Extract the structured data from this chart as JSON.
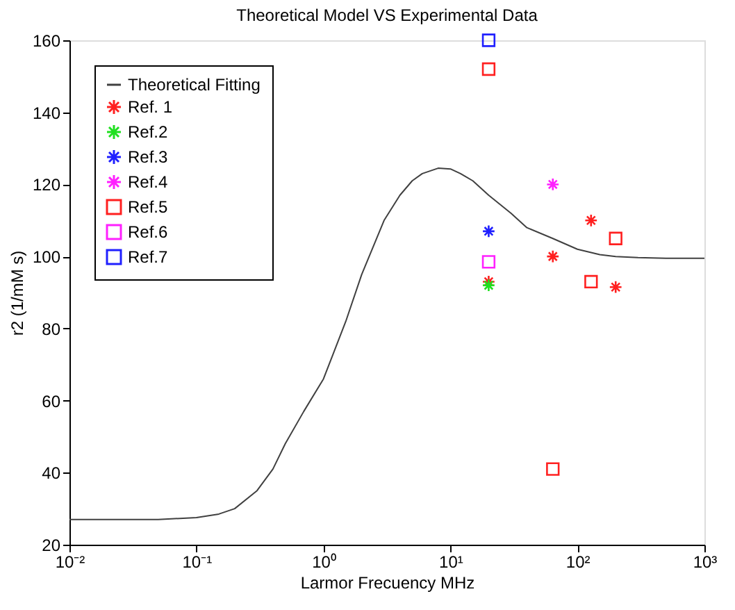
{
  "chart_data": {
    "type": "scatter",
    "title": "Theoretical Model VS Experimental Data",
    "xlabel": "Larmor Frecuency MHz",
    "ylabel": "r2 (1/mM s)",
    "log": "x",
    "grid": false,
    "legend": "top left",
    "xlim": [
      0.01,
      1000
    ],
    "ylim": [
      20,
      160
    ],
    "xticks": [
      {
        "value": 0.01,
        "label": "10⁻²"
      },
      {
        "value": 0.1,
        "label": "10⁻¹"
      },
      {
        "value": 1,
        "label": "10⁰"
      },
      {
        "value": 10,
        "label": "10¹"
      },
      {
        "value": 100,
        "label": "10²"
      },
      {
        "value": 1000,
        "label": "10³"
      }
    ],
    "yticks": [
      20,
      40,
      60,
      80,
      100,
      120,
      140,
      160
    ],
    "series": [
      {
        "name": "Theoretical Fitting",
        "type": "line",
        "color": "#404040",
        "marker": "none",
        "line_style": "solid",
        "x": [
          0.01,
          0.05,
          0.1,
          0.15,
          0.2,
          0.3,
          0.4,
          0.5,
          0.7,
          1,
          1.5,
          2,
          3,
          4,
          5,
          6,
          8,
          10,
          12,
          15,
          20,
          30,
          40,
          64,
          100,
          150,
          200,
          300,
          500,
          1000
        ],
        "values": [
          27,
          27,
          27.5,
          28.5,
          30,
          35,
          41,
          48,
          57,
          66,
          82,
          95,
          110,
          117,
          121,
          123,
          124.5,
          124.3,
          123,
          121,
          117,
          112,
          108,
          105,
          102,
          100.5,
          100,
          99.7,
          99.5,
          99.5
        ]
      },
      {
        "name": "Ref. 1",
        "color": "#ff2020",
        "marker": "cross",
        "x": [
          20,
          64,
          128,
          200
        ],
        "values": [
          93,
          100,
          110,
          91.5
        ]
      },
      {
        "name": "Ref.2",
        "color": "#20e020",
        "marker": "cross",
        "x": [
          20
        ],
        "values": [
          92
        ]
      },
      {
        "name": "Ref.3",
        "color": "#2020ff",
        "marker": "cross",
        "x": [
          20
        ],
        "values": [
          107
        ]
      },
      {
        "name": "Ref.4",
        "color": "#ff20ff",
        "marker": "cross",
        "x": [
          64
        ],
        "values": [
          120
        ]
      },
      {
        "name": "Ref.5",
        "color": "#ff2020",
        "marker": "square",
        "x": [
          20,
          128,
          200,
          64
        ],
        "values": [
          152,
          93,
          105,
          41
        ]
      },
      {
        "name": "Ref.6",
        "color": "#ff20ff",
        "marker": "square",
        "x": [
          20
        ],
        "values": [
          98.5
        ]
      },
      {
        "name": "Ref.7",
        "color": "#2020ff",
        "marker": "square",
        "x": [
          20
        ],
        "values": [
          160
        ]
      }
    ]
  }
}
